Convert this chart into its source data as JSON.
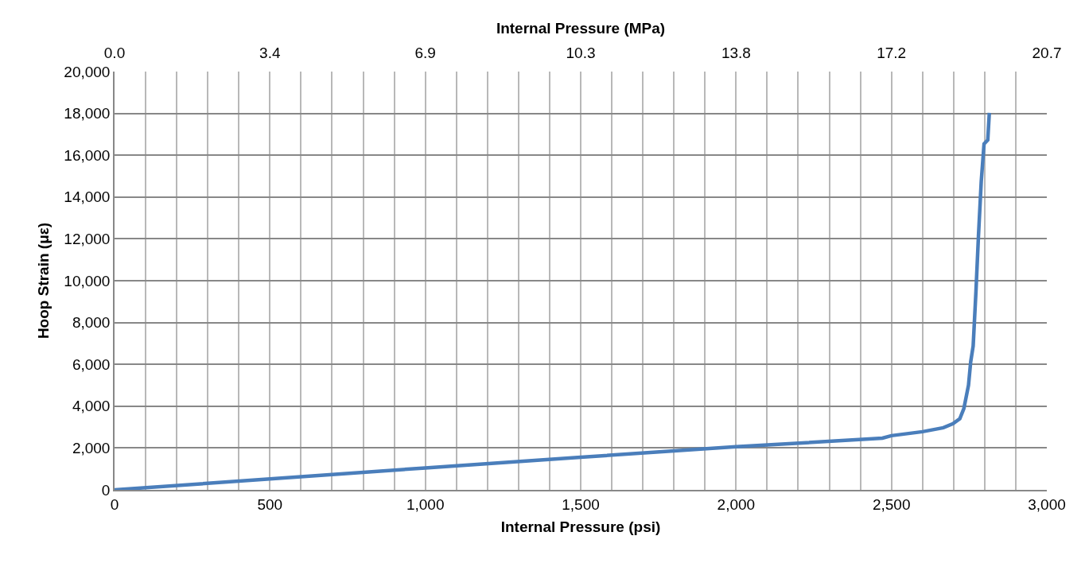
{
  "chart_data": {
    "type": "line",
    "xlabel": "Internal Pressure (psi)",
    "ylabel": "Hoop Strain (με)",
    "x2label": "Internal Pressure (MPa)",
    "x": [
      0,
      500,
      1000,
      1500,
      2000,
      2471,
      2500,
      2600,
      2667,
      2698,
      2720,
      2733,
      2748,
      2755,
      2763,
      2772,
      2780,
      2789,
      2798,
      2810,
      2815
    ],
    "series": [
      {
        "color": "#4a7ebb",
        "values": [
          0,
          520,
          1050,
          1560,
          2060,
          2470,
          2590,
          2780,
          2970,
          3160,
          3400,
          3880,
          5000,
          6120,
          6880,
          9500,
          12130,
          14750,
          16540,
          16730,
          18030
        ]
      }
    ],
    "xlim": [
      0,
      3000
    ],
    "xticks": [
      0,
      {
        "value": 100,
        "label": null
      },
      {
        "value": 200,
        "label": null
      },
      {
        "value": 300,
        "label": null
      },
      {
        "value": 400,
        "label": null
      },
      500,
      {
        "value": 600,
        "label": null
      },
      {
        "value": 700,
        "label": null
      },
      {
        "value": 800,
        "label": null
      },
      {
        "value": 900,
        "label": null
      },
      {
        "value": 1000,
        "label": "1,000"
      },
      {
        "value": 1100,
        "label": null
      },
      {
        "value": 1200,
        "label": null
      },
      {
        "value": 1300,
        "label": null
      },
      {
        "value": 1400,
        "label": null
      },
      {
        "value": 1500,
        "label": "1,500"
      },
      {
        "value": 1600,
        "label": null
      },
      {
        "value": 1700,
        "label": null
      },
      {
        "value": 1800,
        "label": null
      },
      {
        "value": 1900,
        "label": null
      },
      {
        "value": 2000,
        "label": "2,000"
      },
      {
        "value": 2100,
        "label": null
      },
      {
        "value": 2200,
        "label": null
      },
      {
        "value": 2300,
        "label": null
      },
      {
        "value": 2400,
        "label": null
      },
      {
        "value": 2500,
        "label": "2,500"
      },
      {
        "value": 2600,
        "label": null
      },
      {
        "value": 2700,
        "label": null
      },
      {
        "value": 2800,
        "label": null
      },
      {
        "value": 2900,
        "label": null
      },
      {
        "value": 3000,
        "label": "3,000"
      }
    ],
    "x2lim": [
      0,
      20.684
    ],
    "x2ticks": [
      {
        "value": 0,
        "label": "0.0"
      },
      {
        "value": 3.447,
        "label": "3.4"
      },
      {
        "value": 6.895,
        "label": "6.9"
      },
      {
        "value": 10.342,
        "label": "10.3"
      },
      {
        "value": 13.79,
        "label": "13.8"
      },
      {
        "value": 17.237,
        "label": "17.2"
      },
      {
        "value": 20.684,
        "label": "20.7"
      }
    ],
    "ylim": [
      0,
      20000
    ],
    "yticks": [
      0,
      {
        "value": 2000,
        "label": "2,000"
      },
      {
        "value": 4000,
        "label": "4,000"
      },
      {
        "value": 6000,
        "label": "6,000"
      },
      {
        "value": 8000,
        "label": "8,000"
      },
      {
        "value": 10000,
        "label": "10,000"
      },
      {
        "value": 12000,
        "label": "12,000"
      },
      {
        "value": 14000,
        "label": "14,000"
      },
      {
        "value": 16000,
        "label": "16,000"
      },
      {
        "value": 18000,
        "label": "18,000"
      },
      {
        "value": 20000,
        "label": "20,000"
      }
    ],
    "grid": true,
    "marker": "none",
    "line_style": "solid"
  }
}
